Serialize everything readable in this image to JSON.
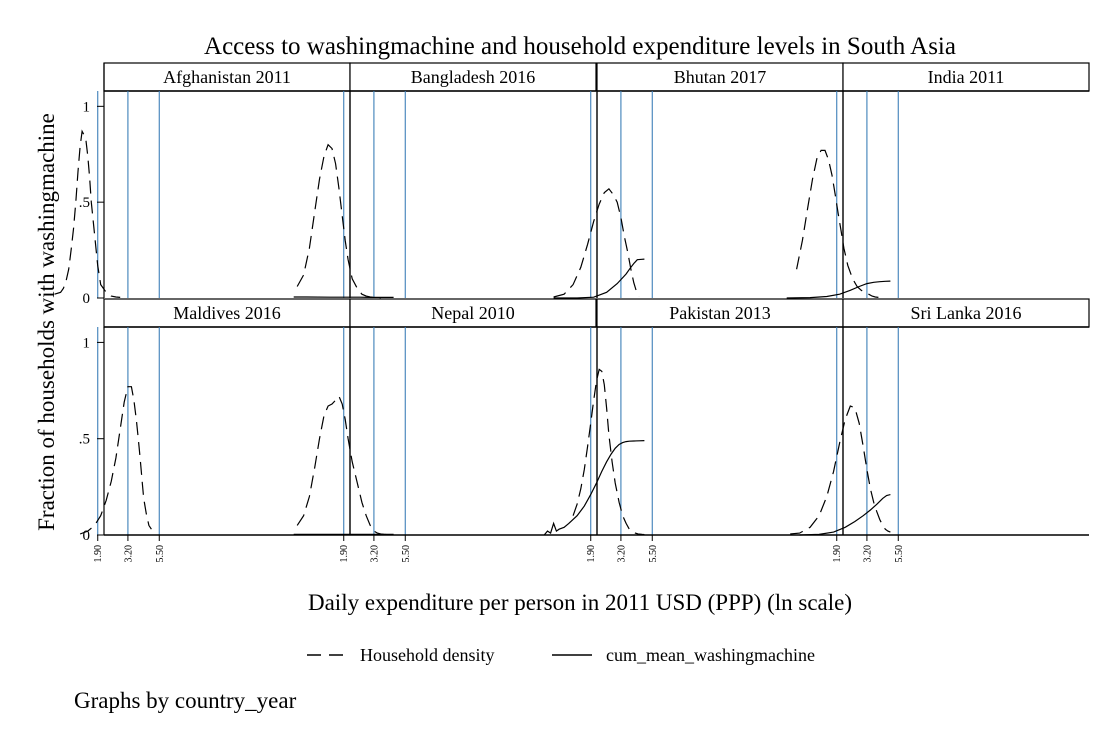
{
  "chart_data": {
    "type": "line",
    "title": "Access to washingmachine and household expenditure levels in South Asia",
    "xlabel": "Daily expenditure per person in 2011 USD (PPP) (ln scale)",
    "ylabel": "Fraction of households with washingmachine",
    "ylim": [
      0,
      1.08
    ],
    "xlim": [
      0.75,
      5.0
    ],
    "yticks": [
      {
        "value": 0,
        "label": "0"
      },
      {
        "value": 0.5,
        "label": ".5"
      },
      {
        "value": 1,
        "label": "1"
      }
    ],
    "reference_lines": [
      {
        "value": 1.9,
        "label": "1.90"
      },
      {
        "value": 3.2,
        "label": "3.20"
      },
      {
        "value": 5.5,
        "label": "5.50"
      }
    ],
    "legend": {
      "placement": "bottom",
      "entries": [
        {
          "name": "Household density",
          "style": "dashed"
        },
        {
          "name": "cum_mean_washingmachine",
          "style": "solid"
        }
      ]
    },
    "note": "Graphs by country_year",
    "panels": [
      {
        "title": "Afghanistan 2011",
        "series": [
          {
            "name": "Household density",
            "x": [
              0.9,
              1.0,
              1.05,
              1.1,
              1.15,
              1.2,
              1.25,
              1.3,
              1.35,
              1.4,
              1.45,
              1.5,
              1.55,
              1.6,
              1.65,
              1.7,
              1.8,
              1.9,
              2.0,
              2.2,
              2.4,
              2.6,
              2.8
            ],
            "y": [
              0.02,
              0.03,
              0.05,
              0.09,
              0.15,
              0.25,
              0.36,
              0.5,
              0.66,
              0.79,
              0.87,
              0.85,
              0.82,
              0.74,
              0.63,
              0.5,
              0.33,
              0.17,
              0.07,
              0.03,
              0.01,
              0.005,
              0.003
            ]
          },
          {
            "name": "cum_mean_washingmachine",
            "x": [],
            "y": []
          }
        ]
      },
      {
        "title": "Bangladesh 2016",
        "series": [
          {
            "name": "Household density",
            "x": [
              0.85,
              0.95,
              1.05,
              1.15,
              1.25,
              1.35,
              1.45,
              1.55,
              1.65,
              1.75,
              1.85,
              1.95,
              2.05,
              2.2,
              2.4,
              2.6,
              2.8,
              3.0,
              3.2,
              3.4,
              3.6
            ],
            "y": [
              0.06,
              0.12,
              0.26,
              0.45,
              0.62,
              0.74,
              0.8,
              0.78,
              0.7,
              0.57,
              0.43,
              0.3,
              0.2,
              0.1,
              0.05,
              0.02,
              0.01,
              0.005,
              0.003,
              0.002,
              0.001
            ]
          },
          {
            "name": "cum_mean_washingmachine",
            "x": [
              0.8,
              1.0,
              1.5,
              2.0,
              2.5,
              3.0,
              3.5,
              4.0,
              4.5
            ],
            "y": [
              0.005,
              0.005,
              0.004,
              0.004,
              0.004,
              0.003,
              0.003,
              0.003,
              0.003
            ]
          }
        ]
      },
      {
        "title": "Bhutan 2017",
        "series": [
          {
            "name": "Household density",
            "x": [
              1.0,
              1.2,
              1.4,
              1.6,
              1.8,
              2.0,
              2.2,
              2.4,
              2.6,
              2.8,
              3.0,
              3.2,
              3.4,
              3.6,
              3.8,
              4.0,
              4.2,
              4.4
            ],
            "y": [
              0.005,
              0.02,
              0.07,
              0.16,
              0.28,
              0.4,
              0.49,
              0.55,
              0.57,
              0.54,
              0.5,
              0.42,
              0.32,
              0.24,
              0.15,
              0.08,
              0.03,
              0.01
            ]
          },
          {
            "name": "cum_mean_washingmachine",
            "x": [
              1.0,
              1.5,
              2.0,
              2.5,
              3.0,
              3.5,
              3.75,
              4.0,
              4.25,
              4.6,
              4.8
            ],
            "y": [
              0.0,
              0.0,
              0.004,
              0.03,
              0.075,
              0.125,
              0.155,
              0.18,
              0.2,
              0.202,
              0.203
            ]
          }
        ]
      },
      {
        "title": "India 2011",
        "series": [
          {
            "name": "Household density",
            "x": [
              0.95,
              1.05,
              1.15,
              1.25,
              1.35,
              1.45,
              1.55,
              1.65,
              1.75,
              1.85,
              1.95,
              2.05,
              2.15,
              2.3,
              2.5,
              2.7,
              2.9,
              3.1,
              3.3,
              3.5,
              3.7,
              3.9
            ],
            "y": [
              0.15,
              0.3,
              0.47,
              0.62,
              0.73,
              0.77,
              0.77,
              0.72,
              0.64,
              0.54,
              0.44,
              0.35,
              0.26,
              0.17,
              0.1,
              0.06,
              0.04,
              0.03,
              0.02,
              0.01,
              0.005,
              0.003
            ]
          },
          {
            "name": "cum_mean_washingmachine",
            "x": [
              0.8,
              1.2,
              1.6,
              2.0,
              2.4,
              2.8,
              3.2,
              3.6,
              4.0,
              4.4,
              4.8
            ],
            "y": [
              0.0,
              0.002,
              0.008,
              0.02,
              0.04,
              0.06,
              0.075,
              0.082,
              0.085,
              0.087,
              0.088
            ]
          }
        ]
      },
      {
        "title": "Maldives 2016",
        "series": [
          {
            "name": "Household density",
            "x": [
              1.4,
              1.6,
              1.8,
              2.0,
              2.2,
              2.4,
              2.6,
              2.8,
              3.0,
              3.2,
              3.4,
              3.55,
              3.7,
              3.8,
              3.9,
              4.0,
              4.1,
              4.2,
              4.4,
              4.6,
              4.8
            ],
            "y": [
              0.005,
              0.02,
              0.05,
              0.1,
              0.18,
              0.28,
              0.4,
              0.55,
              0.69,
              0.77,
              0.77,
              0.7,
              0.6,
              0.52,
              0.44,
              0.36,
              0.27,
              0.19,
              0.11,
              0.05,
              0.03
            ]
          },
          {
            "name": "cum_mean_washingmachine",
            "x": [],
            "y": []
          }
        ]
      },
      {
        "title": "Nepal 2010",
        "series": [
          {
            "name": "Household density",
            "x": [
              0.85,
              0.95,
              1.05,
              1.15,
              1.25,
              1.35,
              1.45,
              1.55,
              1.65,
              1.75,
              1.85,
              1.95,
              2.05,
              2.2,
              2.4,
              2.6,
              2.8,
              3.0,
              3.2,
              3.4,
              3.6,
              3.8,
              4.0,
              4.2,
              4.5
            ],
            "y": [
              0.05,
              0.1,
              0.2,
              0.35,
              0.5,
              0.62,
              0.67,
              0.68,
              0.7,
              0.72,
              0.68,
              0.6,
              0.5,
              0.38,
              0.27,
              0.17,
              0.1,
              0.05,
              0.02,
              0.01,
              0.005,
              0.003,
              0.002,
              0.001,
              0.0
            ]
          },
          {
            "name": "cum_mean_washingmachine",
            "x": [
              0.8,
              1.5,
              2.0,
              2.5,
              3.0,
              3.5,
              4.0,
              4.5
            ],
            "y": [
              0.003,
              0.003,
              0.003,
              0.003,
              0.003,
              0.003,
              0.003,
              0.003
            ]
          }
        ]
      },
      {
        "title": "Pakistan 2013",
        "series": [
          {
            "name": "Household density",
            "x": [
              1.4,
              1.5,
              1.6,
              1.7,
              1.8,
              1.9,
              2.0,
              2.1,
              2.2,
              2.3,
              2.4,
              2.5,
              2.6,
              2.75,
              2.9,
              3.1,
              3.3,
              3.5,
              3.7,
              3.9,
              4.1,
              4.3,
              4.6,
              4.8
            ],
            "y": [
              0.1,
              0.16,
              0.24,
              0.34,
              0.46,
              0.58,
              0.7,
              0.8,
              0.86,
              0.85,
              0.78,
              0.66,
              0.52,
              0.38,
              0.27,
              0.17,
              0.1,
              0.06,
              0.03,
              0.02,
              0.01,
              0.005,
              0.003,
              0.002
            ]
          },
          {
            "name": "cum_mean_washingmachine",
            "x": [
              0.85,
              0.9,
              0.95,
              1.0,
              1.05,
              1.1,
              1.2,
              1.3,
              1.5,
              1.7,
              1.9,
              2.1,
              2.3,
              2.5,
              2.7,
              2.9,
              3.1,
              3.3,
              3.5,
              3.7,
              4.0,
              4.4,
              4.8
            ],
            "y": [
              0.0,
              0.02,
              0.01,
              0.06,
              0.02,
              0.03,
              0.04,
              0.06,
              0.1,
              0.15,
              0.21,
              0.27,
              0.33,
              0.38,
              0.42,
              0.45,
              0.47,
              0.48,
              0.485,
              0.487,
              0.488,
              0.489,
              0.49
            ]
          }
        ]
      },
      {
        "title": "Sri Lanka 2016",
        "series": [
          {
            "name": "Household density",
            "x": [
              0.85,
              1.0,
              1.2,
              1.4,
              1.6,
              1.8,
              2.0,
              2.2,
              2.4,
              2.6,
              2.8,
              3.0,
              3.2,
              3.4,
              3.6,
              3.8,
              4.0,
              4.2,
              4.4,
              4.6,
              4.8
            ],
            "y": [
              0.005,
              0.01,
              0.04,
              0.1,
              0.2,
              0.33,
              0.48,
              0.6,
              0.67,
              0.66,
              0.58,
              0.46,
              0.34,
              0.24,
              0.17,
              0.12,
              0.08,
              0.05,
              0.03,
              0.02,
              0.015
            ]
          },
          {
            "name": "cum_mean_washingmachine",
            "x": [
              1.0,
              1.4,
              1.8,
              2.2,
              2.6,
              3.0,
              3.4,
              3.8,
              4.2,
              4.5,
              4.8
            ],
            "y": [
              0.0,
              0.003,
              0.015,
              0.04,
              0.07,
              0.1,
              0.13,
              0.16,
              0.19,
              0.205,
              0.21
            ]
          }
        ]
      }
    ]
  }
}
